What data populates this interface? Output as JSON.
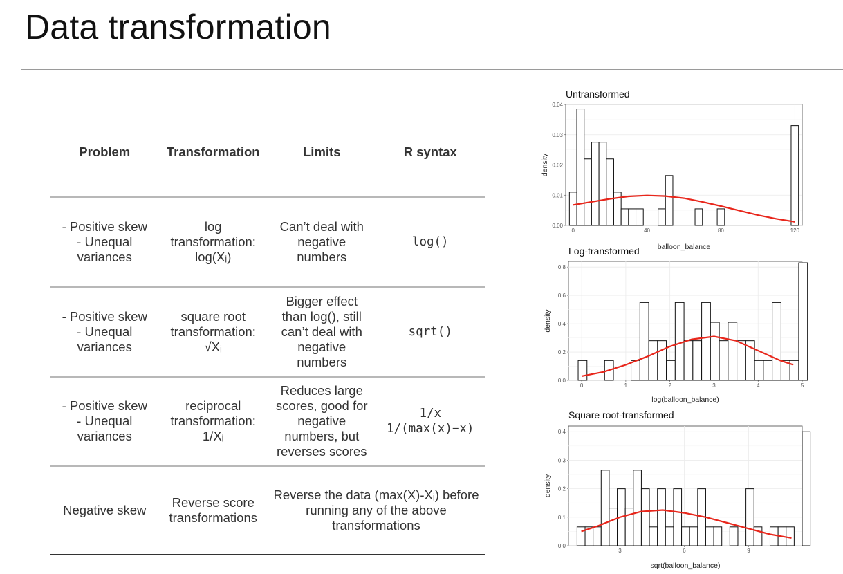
{
  "slide": {
    "title": "Data transformation"
  },
  "table": {
    "headers": [
      "Problem",
      "Transformation",
      "Limits",
      "R syntax"
    ],
    "rows": [
      {
        "problem": "- Positive skew\n- Unequal\nvariances",
        "transformation": "log\ntransformation:\nlog(Xᵢ)",
        "limits": "Can’t deal with\nnegative\nnumbers",
        "syntax": "log()"
      },
      {
        "problem": "- Positive skew\n- Unequal\nvariances",
        "transformation": "square root\ntransformation:\n√Xᵢ",
        "limits": "Bigger effect\nthan log(), still\ncan’t deal with\nnegative\nnumbers",
        "syntax": "sqrt()"
      },
      {
        "problem": "- Positive skew\n- Unequal\nvariances",
        "transformation": "reciprocal\ntransformation:\n1/Xᵢ",
        "limits": "Reduces large\nscores, good for\nnegative\nnumbers, but\nreverses scores",
        "syntax": "1/x\n1/(max(x)−x)"
      },
      {
        "problem": "Negative skew",
        "transformation": "Reverse score\ntransformations",
        "limits": "Reverse the data (max(X)-Xᵢ) before\nrunning any of the above\ntransformations",
        "syntax": ""
      }
    ]
  },
  "chart_data": [
    {
      "type": "bar",
      "title": "Untransformed",
      "xlabel": "balloon_balance",
      "ylabel": "density",
      "xlim": [
        -4,
        124
      ],
      "ylim": [
        0,
        0.04
      ],
      "x_ticks": [
        0,
        40,
        80,
        120
      ],
      "y_ticks": [
        0.0,
        0.01,
        0.02,
        0.03,
        0.04
      ],
      "y_tick_labels": [
        "0.00",
        "0.01",
        "0.02",
        "0.03",
        "0.04"
      ],
      "bin_start": -2,
      "bin_width": 4,
      "values": [
        0.011,
        0.0385,
        0.022,
        0.0275,
        0.0275,
        0.022,
        0.011,
        0.0055,
        0.0055,
        0.0055,
        0,
        0,
        0.0055,
        0.0165,
        0,
        0,
        0,
        0.0055,
        0,
        0,
        0.0055,
        0,
        0,
        0,
        0,
        0,
        0,
        0,
        0,
        0,
        0.033
      ],
      "curve": {
        "type": "density",
        "x": [
          0,
          10,
          20,
          30,
          40,
          50,
          60,
          70,
          80,
          90,
          100,
          110,
          120
        ],
        "y": [
          0.0068,
          0.0078,
          0.0088,
          0.0096,
          0.0099,
          0.0097,
          0.009,
          0.0078,
          0.0064,
          0.0049,
          0.0034,
          0.0022,
          0.0012
        ],
        "color": "#e8261b"
      }
    },
    {
      "type": "bar",
      "title": "Log-transformed",
      "xlabel": "log(balloon_balance)",
      "ylabel": "density",
      "xlim": [
        -0.3,
        5
      ],
      "ylim": [
        0,
        0.84
      ],
      "x_ticks": [
        0,
        1,
        2,
        3,
        4,
        5
      ],
      "y_ticks": [
        0.0,
        0.2,
        0.4,
        0.6,
        0.8
      ],
      "y_tick_labels": [
        "0.0",
        "0.2",
        "0.4",
        "0.6",
        "0.8"
      ],
      "bin_start": -0.08,
      "bin_width": 0.2,
      "values": [
        0.14,
        0,
        0,
        0.14,
        0,
        0,
        0.14,
        0.55,
        0.28,
        0.28,
        0.14,
        0.55,
        0.28,
        0.28,
        0.55,
        0.41,
        0.28,
        0.41,
        0.28,
        0.28,
        0.14,
        0.14,
        0.55,
        0.14,
        0.14,
        0.83
      ],
      "curve": {
        "type": "density",
        "x": [
          0,
          0.5,
          1,
          1.5,
          2,
          2.5,
          3,
          3.5,
          4,
          4.5,
          4.8
        ],
        "y": [
          0.03,
          0.06,
          0.11,
          0.17,
          0.24,
          0.29,
          0.31,
          0.28,
          0.21,
          0.14,
          0.11
        ],
        "color": "#e8261b"
      }
    },
    {
      "type": "bar",
      "title": "Square root-transformed",
      "xlabel": "sqrt(balloon_balance)",
      "ylabel": "density",
      "xlim": [
        0.6,
        11.5
      ],
      "ylim": [
        0,
        0.42
      ],
      "x_ticks": [
        3,
        6,
        9
      ],
      "y_ticks": [
        0.0,
        0.1,
        0.2,
        0.3,
        0.4
      ],
      "y_tick_labels": [
        "0.0",
        "0.1",
        "0.2",
        "0.3",
        "0.4"
      ],
      "bin_start": 1.0,
      "bin_width": 0.375,
      "values": [
        0.066,
        0.066,
        0.066,
        0.265,
        0.132,
        0.2,
        0.132,
        0.265,
        0.2,
        0.066,
        0.2,
        0.066,
        0.2,
        0.066,
        0.066,
        0.2,
        0.066,
        0.066,
        0,
        0.066,
        0,
        0.2,
        0.066,
        0,
        0.066,
        0.066,
        0.066,
        0,
        0.4
      ],
      "curve": {
        "type": "density",
        "x": [
          1.2,
          2,
          3,
          4,
          5,
          6,
          7,
          8,
          9,
          10,
          11
        ],
        "y": [
          0.05,
          0.07,
          0.1,
          0.12,
          0.125,
          0.115,
          0.1,
          0.08,
          0.06,
          0.04,
          0.027
        ],
        "color": "#e8261b"
      }
    }
  ]
}
